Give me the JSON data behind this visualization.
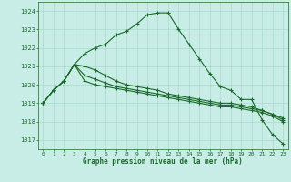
{
  "title": "Graphe pression niveau de la mer (hPa)",
  "background_color": "#c8ece6",
  "grid_color": "#aad8cc",
  "line_color": "#1a6b2a",
  "xlim": [
    -0.5,
    23.5
  ],
  "ylim": [
    1016.5,
    1024.5
  ],
  "yticks": [
    1017,
    1018,
    1019,
    1020,
    1021,
    1022,
    1023,
    1024
  ],
  "xticks": [
    0,
    1,
    2,
    3,
    4,
    5,
    6,
    7,
    8,
    9,
    10,
    11,
    12,
    13,
    14,
    15,
    16,
    17,
    18,
    19,
    20,
    21,
    22,
    23
  ],
  "line1": [
    1019.0,
    1019.7,
    1020.2,
    1021.1,
    1021.7,
    1022.0,
    1022.2,
    1022.7,
    1022.9,
    1023.3,
    1023.8,
    1023.9,
    1023.9,
    1023.0,
    1022.2,
    1021.4,
    1020.6,
    1019.9,
    1019.7,
    1019.2,
    1019.2,
    1018.1,
    1017.3,
    1016.8
  ],
  "line2": [
    1019.0,
    1019.7,
    1020.2,
    1021.1,
    1020.2,
    1020.0,
    1019.9,
    1019.8,
    1019.7,
    1019.6,
    1019.5,
    1019.4,
    1019.3,
    1019.2,
    1019.1,
    1019.0,
    1018.9,
    1018.8,
    1018.8,
    1018.7,
    1018.6,
    1018.5,
    1018.3,
    1018.0
  ],
  "line3": [
    1019.0,
    1019.7,
    1020.2,
    1021.1,
    1020.5,
    1020.3,
    1020.1,
    1019.9,
    1019.8,
    1019.7,
    1019.6,
    1019.5,
    1019.4,
    1019.3,
    1019.2,
    1019.1,
    1019.0,
    1018.9,
    1018.9,
    1018.8,
    1018.7,
    1018.6,
    1018.4,
    1018.2
  ],
  "line4": [
    1019.0,
    1019.7,
    1020.2,
    1021.1,
    1021.0,
    1020.8,
    1020.5,
    1020.2,
    1020.0,
    1019.9,
    1019.8,
    1019.7,
    1019.5,
    1019.4,
    1019.3,
    1019.2,
    1019.1,
    1019.0,
    1019.0,
    1018.9,
    1018.8,
    1018.6,
    1018.4,
    1018.1
  ]
}
